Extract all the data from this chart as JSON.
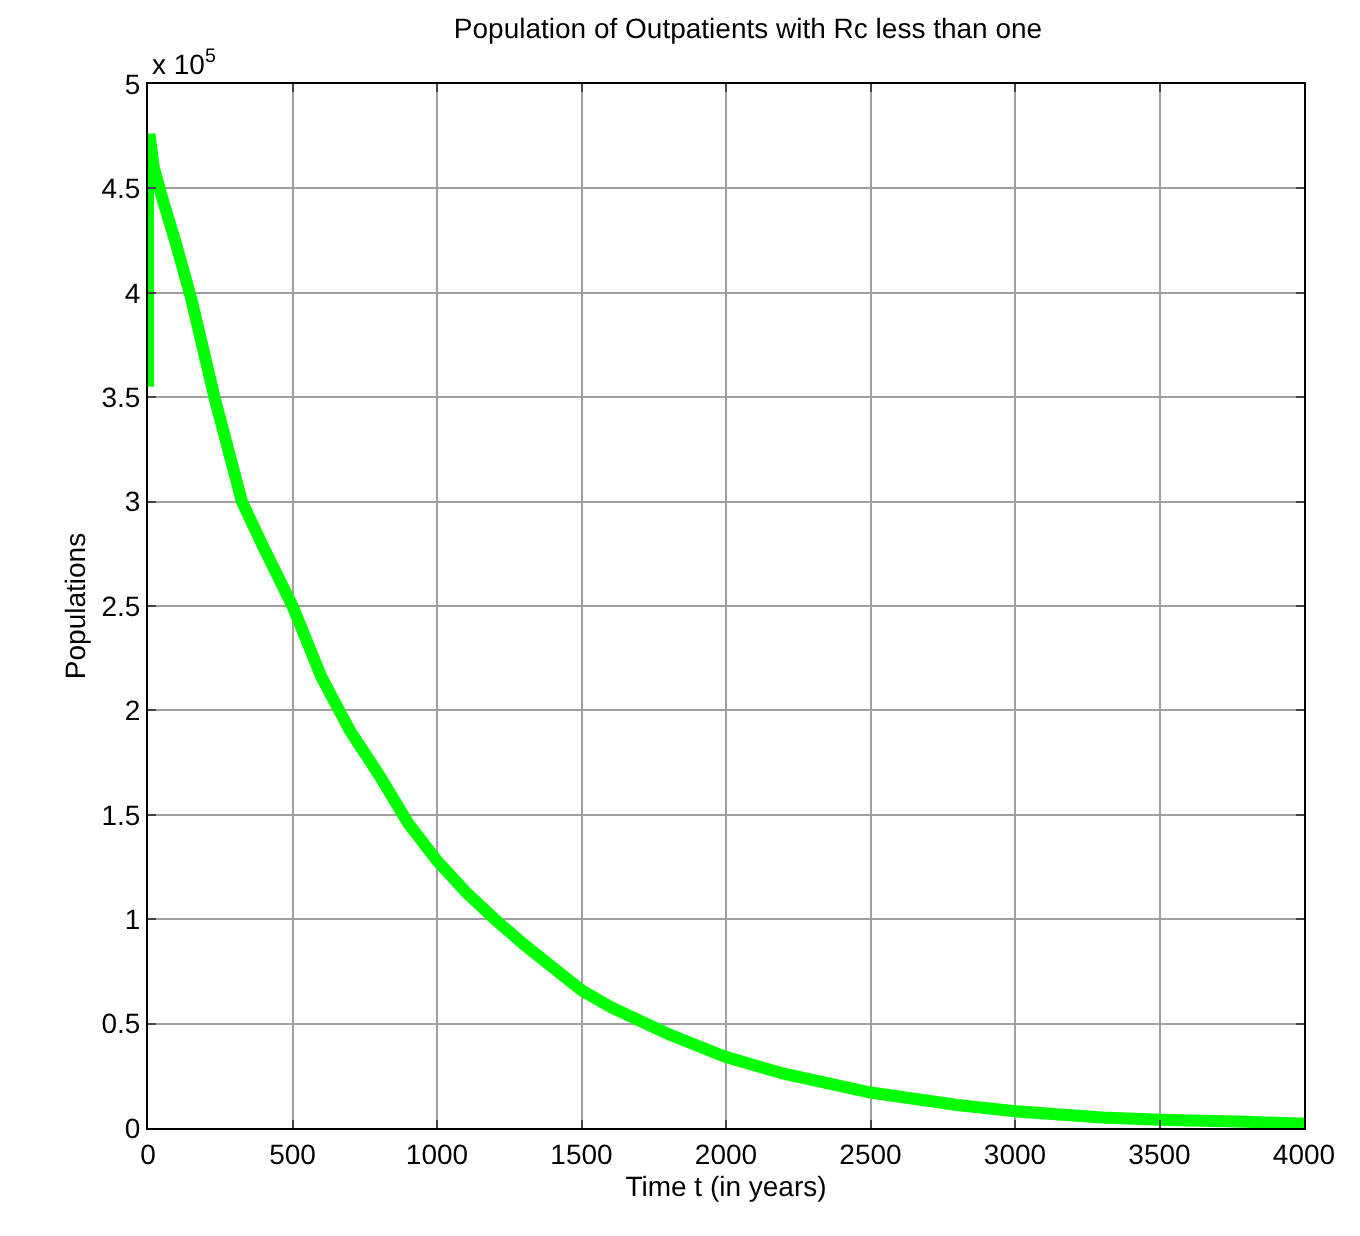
{
  "chart_data": {
    "type": "line",
    "title": "Population of Outpatients with Rc less than one",
    "xlabel": "Time t (in years)",
    "ylabel": "Populations",
    "annotations": [
      "x 10$^{5}$"
    ],
    "xlim": [
      0,
      4000
    ],
    "xticks": [
      0,
      500,
      1000,
      1500,
      2000,
      2500,
      3000,
      3500,
      4000
    ],
    "ylim": [
      0,
      5
    ],
    "yticks": [
      0,
      0.5,
      1,
      1.5,
      2,
      2.5,
      3,
      3.5,
      4,
      4.5,
      5
    ],
    "grid": true,
    "marker": "none",
    "line_style": "solid",
    "series": [
      {
        "color": "#00ff00",
        "x": [
          0,
          0,
          5,
          20,
          50,
          100,
          150,
          230,
          325,
          400,
          500,
          600,
          700,
          800,
          900,
          1000,
          1100,
          1200,
          1300,
          1400,
          1500,
          1600,
          1800,
          2000,
          2200,
          2500,
          2800,
          3000,
          3300,
          3500,
          3800,
          4000
        ],
        "values": [
          3.55,
          4.6,
          4.76,
          4.6,
          4.45,
          4.22,
          3.97,
          3.5,
          3.0,
          2.78,
          2.5,
          2.16,
          1.9,
          1.69,
          1.46,
          1.28,
          1.13,
          1.0,
          0.88,
          0.77,
          0.66,
          0.58,
          0.45,
          0.34,
          0.26,
          0.17,
          0.11,
          0.08,
          0.05,
          0.04,
          0.03,
          0.02
        ]
      }
    ]
  }
}
